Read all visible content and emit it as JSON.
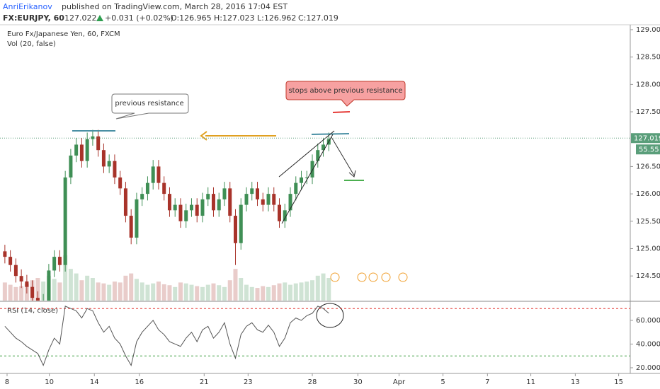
{
  "header": {
    "author": "AnriErikanov",
    "published": "published on TradingView.com, March 28, 2016 17:04 EST",
    "symbol": "FX:EURJPY, 60",
    "last": "127.022",
    "change": "+0.031 (+0.02%)",
    "open": "O:126.965",
    "high": "H:127.023",
    "low": "L:126.962",
    "close": "C:127.019"
  },
  "annotations": [
    "previous resistance",
    "stops above previous resistance"
  ],
  "chart_data": [
    {
      "type": "candlestick",
      "title": "Euro Fx/Japanese Yen, 60, FXCM",
      "indicator": "Vol (20, false)",
      "open": [
        124.95,
        124.85,
        124.7,
        124.5,
        124.4,
        124.3,
        124.1,
        124.0,
        124.05,
        124.6,
        124.85,
        124.7,
        126.3,
        126.7,
        126.9,
        126.6,
        127.0,
        127.05,
        126.8,
        126.5,
        126.6,
        126.3,
        126.1,
        125.6,
        125.2,
        125.9,
        126.0,
        126.2,
        126.5,
        126.2,
        126.0,
        125.7,
        125.8,
        125.5,
        125.7,
        125.8,
        125.6,
        125.9,
        126.0,
        125.7,
        125.9,
        126.1,
        125.6,
        125.1,
        125.8,
        126.0,
        126.1,
        125.9,
        125.8,
        126.0,
        125.8,
        125.5,
        125.7,
        126.0,
        126.2,
        126.3,
        126.3,
        126.6,
        126.8,
        126.9
      ],
      "high": [
        125.07,
        124.97,
        124.82,
        124.62,
        124.52,
        124.42,
        124.22,
        124.17,
        124.72,
        124.97,
        124.97,
        126.42,
        126.82,
        127.02,
        127.02,
        127.12,
        127.17,
        127.17,
        126.92,
        126.72,
        126.72,
        126.42,
        126.22,
        125.72,
        126.02,
        126.12,
        126.32,
        126.62,
        126.62,
        126.32,
        126.12,
        125.92,
        125.92,
        125.82,
        125.92,
        125.92,
        126.02,
        126.12,
        126.12,
        126.02,
        126.22,
        126.22,
        125.72,
        125.92,
        126.12,
        126.22,
        126.22,
        126.02,
        126.12,
        126.12,
        125.92,
        125.82,
        126.12,
        126.32,
        126.42,
        126.42,
        126.72,
        126.92,
        127.02,
        127.12
      ],
      "low": [
        124.73,
        124.58,
        124.38,
        124.28,
        124.18,
        123.98,
        123.88,
        123.88,
        123.93,
        124.48,
        124.58,
        124.58,
        126.18,
        126.58,
        126.48,
        126.48,
        126.88,
        126.68,
        126.38,
        126.38,
        126.18,
        125.98,
        125.48,
        125.08,
        125.08,
        125.78,
        125.88,
        126.08,
        126.08,
        125.88,
        125.58,
        125.58,
        125.38,
        125.38,
        125.58,
        125.48,
        125.48,
        125.78,
        125.58,
        125.58,
        125.78,
        125.48,
        124.7,
        124.98,
        125.68,
        125.88,
        125.78,
        125.68,
        125.68,
        125.68,
        125.38,
        125.38,
        125.58,
        125.88,
        126.08,
        126.18,
        126.18,
        126.48,
        126.68,
        126.78
      ],
      "close": [
        124.85,
        124.7,
        124.5,
        124.4,
        124.3,
        124.1,
        124.0,
        124.05,
        124.6,
        124.85,
        124.7,
        126.3,
        126.7,
        126.9,
        126.6,
        127.0,
        127.05,
        126.8,
        126.5,
        126.6,
        126.3,
        126.1,
        125.6,
        125.2,
        125.9,
        126.0,
        126.2,
        126.5,
        126.2,
        126.0,
        125.7,
        125.8,
        125.5,
        125.7,
        125.8,
        125.6,
        125.9,
        126.0,
        125.7,
        125.9,
        126.1,
        125.6,
        125.1,
        125.8,
        126.0,
        126.1,
        125.9,
        125.8,
        126.0,
        125.8,
        125.5,
        125.7,
        126.0,
        126.2,
        126.3,
        126.3,
        126.6,
        126.8,
        126.9,
        127.0
      ],
      "volume": [
        40,
        35,
        30,
        32,
        38,
        45,
        50,
        42,
        55,
        48,
        40,
        100,
        70,
        60,
        45,
        55,
        50,
        40,
        38,
        35,
        42,
        40,
        55,
        60,
        48,
        40,
        35,
        38,
        42,
        36,
        34,
        30,
        40,
        38,
        35,
        32,
        30,
        35,
        38,
        34,
        30,
        45,
        70,
        50,
        35,
        30,
        28,
        32,
        30,
        34,
        38,
        40,
        35,
        38,
        40,
        42,
        45,
        55,
        60,
        50
      ],
      "vlim": [
        0,
        250
      ],
      "up_color": "#3f8f55",
      "down_color": "#a8332a",
      "xlim": [
        0,
        114.8
      ],
      "xticks": [
        {
          "value": 0.9,
          "label": "8"
        },
        {
          "value": 8.6,
          "label": "10"
        },
        {
          "value": 16.8,
          "label": "14"
        },
        {
          "value": 25,
          "label": "16"
        },
        {
          "value": 36.8,
          "label": "21"
        },
        {
          "value": 44.8,
          "label": "23"
        },
        {
          "value": 56.5,
          "label": "28"
        },
        {
          "value": 64.8,
          "label": "30"
        },
        {
          "value": 72.3,
          "label": "Apr"
        },
        {
          "value": 80.3,
          "label": "5"
        },
        {
          "value": 88.4,
          "label": "7"
        },
        {
          "value": 96.3,
          "label": "11"
        },
        {
          "value": 104.4,
          "label": "13"
        },
        {
          "value": 112.3,
          "label": "15"
        }
      ],
      "ylim": [
        124.05,
        129.09
      ],
      "yticks": [
        {
          "value": 124.5,
          "label": "124.500"
        },
        {
          "value": 125,
          "label": "125.000"
        },
        {
          "value": 125.5,
          "label": "125.500"
        },
        {
          "value": 126,
          "label": "126.000"
        },
        {
          "value": 126.5,
          "label": "126.500"
        },
        {
          "value": 127.5,
          "label": "127.500"
        },
        {
          "value": 128,
          "label": "128.000"
        },
        {
          "value": 128.5,
          "label": "128.500"
        },
        {
          "value": 129,
          "label": "129.000"
        }
      ],
      "last_price": {
        "value": 127.019,
        "label": "127.019"
      },
      "countdown": "55.55"
    },
    {
      "type": "line",
      "title": "RSI (14, close)",
      "color": "#555555",
      "values": [
        55,
        50,
        45,
        42,
        38,
        35,
        32,
        22,
        35,
        45,
        40,
        72,
        70,
        68,
        62,
        70,
        68,
        58,
        50,
        55,
        45,
        40,
        30,
        22,
        42,
        50,
        55,
        60,
        52,
        48,
        42,
        40,
        38,
        45,
        50,
        42,
        52,
        55,
        45,
        50,
        58,
        40,
        28,
        48,
        55,
        58,
        52,
        50,
        56,
        50,
        38,
        45,
        58,
        62,
        60,
        64,
        66,
        72,
        70,
        66
      ],
      "xlim": [
        0,
        114.8
      ],
      "ylim": [
        15.2,
        74.9
      ],
      "yticks": [
        {
          "value": 20,
          "label": "20.0000"
        },
        {
          "value": 40,
          "label": "40.0000"
        },
        {
          "value": 60,
          "label": "60.0000"
        }
      ],
      "reference_lines": [
        {
          "value": 70,
          "color": "#e53935"
        },
        {
          "value": 30,
          "color": "#43a047"
        }
      ]
    }
  ]
}
